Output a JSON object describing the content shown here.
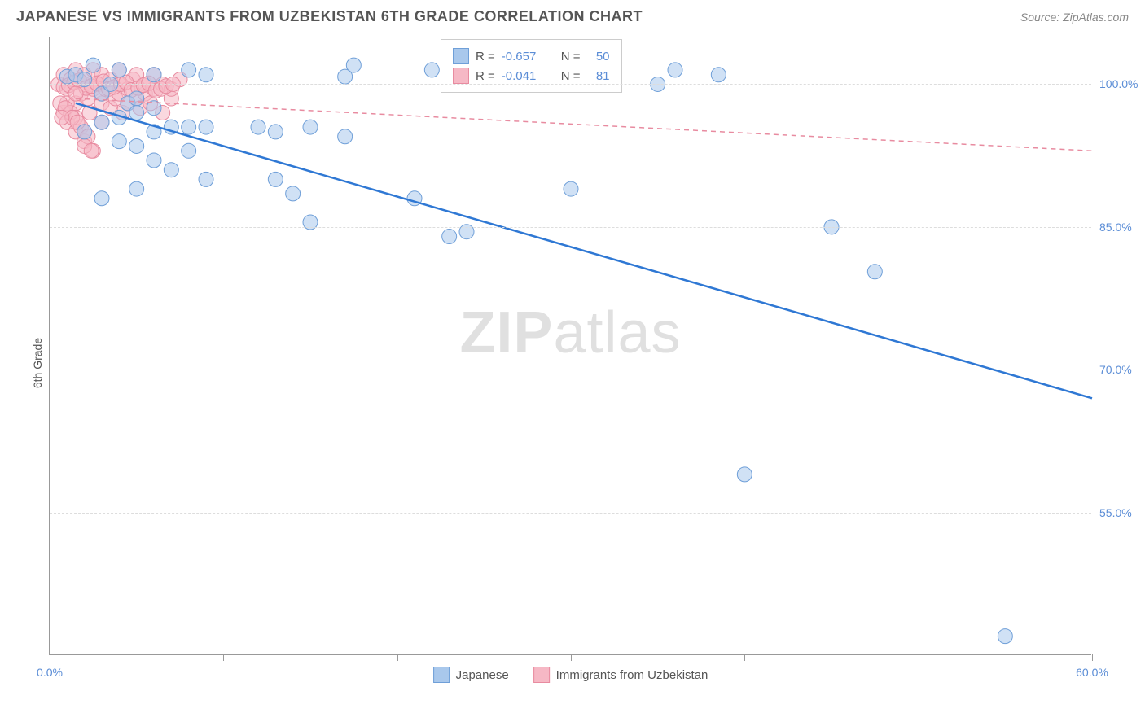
{
  "title": "JAPANESE VS IMMIGRANTS FROM UZBEKISTAN 6TH GRADE CORRELATION CHART",
  "source": "Source: ZipAtlas.com",
  "y_axis_label": "6th Grade",
  "watermark_bold": "ZIP",
  "watermark_rest": "atlas",
  "chart": {
    "type": "scatter",
    "xlim": [
      0,
      60
    ],
    "ylim": [
      40,
      105
    ],
    "x_ticks": [
      0,
      10,
      20,
      30,
      40,
      50,
      60
    ],
    "x_tick_labels": [
      "0.0%",
      "",
      "",
      "",
      "",
      "",
      "60.0%"
    ],
    "y_ticks": [
      55,
      70,
      85,
      100
    ],
    "y_tick_labels": [
      "55.0%",
      "70.0%",
      "85.0%",
      "100.0%"
    ],
    "grid_color": "#dddddd",
    "axis_color": "#999999",
    "background_color": "#ffffff",
    "marker_radius": 9,
    "marker_opacity": 0.55,
    "line_width": 2.5,
    "series": [
      {
        "name": "Japanese",
        "fill_color": "#a9c8ec",
        "stroke_color": "#6f9fd8",
        "line_color": "#2f78d4",
        "R": "-0.657",
        "N": "50",
        "trend": {
          "x1": 1.5,
          "y1": 98,
          "x2": 60,
          "y2": 67
        },
        "points": [
          [
            1,
            100.8
          ],
          [
            1.5,
            101
          ],
          [
            2,
            100.5
          ],
          [
            2.5,
            102
          ],
          [
            3,
            99
          ],
          [
            3.5,
            100
          ],
          [
            4,
            101.5
          ],
          [
            4.5,
            98
          ],
          [
            5,
            98.5
          ],
          [
            2,
            95
          ],
          [
            3,
            96
          ],
          [
            4,
            96.5
          ],
          [
            5,
            97
          ],
          [
            6,
            101
          ],
          [
            8,
            101.5
          ],
          [
            9,
            101
          ],
          [
            17,
            100.8
          ],
          [
            17.5,
            102
          ],
          [
            22,
            101.5
          ],
          [
            35,
            100
          ],
          [
            36,
            101.5
          ],
          [
            4,
            94
          ],
          [
            5,
            93.5
          ],
          [
            6,
            95
          ],
          [
            7,
            95.5
          ],
          [
            6,
            97.5
          ],
          [
            8,
            95.5
          ],
          [
            9,
            95.5
          ],
          [
            12,
            95.5
          ],
          [
            13,
            95
          ],
          [
            15,
            95.5
          ],
          [
            17,
            94.5
          ],
          [
            6,
            92
          ],
          [
            7,
            91
          ],
          [
            3,
            88
          ],
          [
            5,
            89
          ],
          [
            9,
            90
          ],
          [
            13,
            90
          ],
          [
            14,
            88.5
          ],
          [
            15,
            85.5
          ],
          [
            21,
            88
          ],
          [
            30,
            89
          ],
          [
            24,
            84.5
          ],
          [
            23,
            84
          ],
          [
            45,
            85
          ],
          [
            38.5,
            101
          ],
          [
            47.5,
            80.3
          ],
          [
            40,
            59
          ],
          [
            55,
            42
          ],
          [
            8,
            93
          ]
        ]
      },
      {
        "name": "Immigrants from Uzbekistan",
        "fill_color": "#f6b8c5",
        "stroke_color": "#e88ba0",
        "line_color": "#e88ba0",
        "R": "-0.041",
        "N": "81",
        "trend": {
          "x1": 1.5,
          "y1": 98.5,
          "x2": 60,
          "y2": 93
        },
        "points": [
          [
            0.5,
            100
          ],
          [
            0.8,
            101
          ],
          [
            1,
            99.5
          ],
          [
            1.2,
            100.5
          ],
          [
            1.5,
            98
          ],
          [
            1.5,
            101.5
          ],
          [
            1.8,
            99
          ],
          [
            2,
            100
          ],
          [
            2,
            101
          ],
          [
            2.2,
            98.5
          ],
          [
            2.5,
            99.5
          ],
          [
            2.5,
            101.5
          ],
          [
            2.8,
            100
          ],
          [
            3,
            98
          ],
          [
            3,
            99
          ],
          [
            3,
            101
          ],
          [
            3.2,
            99.5
          ],
          [
            3.5,
            100.5
          ],
          [
            3.5,
            97.5
          ],
          [
            3.8,
            98.5
          ],
          [
            4,
            99
          ],
          [
            4,
            100
          ],
          [
            4,
            101.5
          ],
          [
            4.2,
            97
          ],
          [
            4.5,
            98
          ],
          [
            4.5,
            99.5
          ],
          [
            4.8,
            100.5
          ],
          [
            5,
            98.5
          ],
          [
            5,
            101
          ],
          [
            5.2,
            97.5
          ],
          [
            5.5,
            99
          ],
          [
            5.5,
            100
          ],
          [
            5.8,
            98
          ],
          [
            6,
            99.5
          ],
          [
            6,
            101
          ],
          [
            6.5,
            97
          ],
          [
            6.5,
            100
          ],
          [
            7,
            98.5
          ],
          [
            7,
            99.5
          ],
          [
            7.5,
            100.5
          ],
          [
            0.8,
            97
          ],
          [
            1,
            96
          ],
          [
            1.5,
            95
          ],
          [
            2,
            94
          ],
          [
            2.5,
            93
          ],
          [
            1,
            98
          ],
          [
            1.2,
            97
          ],
          [
            1.5,
            96.5
          ],
          [
            1.8,
            95.5
          ],
          [
            2,
            95
          ],
          [
            2.2,
            94.5
          ],
          [
            0.8,
            99.7
          ],
          [
            1.1,
            99.9
          ],
          [
            1.4,
            100.2
          ],
          [
            1.7,
            100.4
          ],
          [
            2.1,
            99.6
          ],
          [
            2.4,
            99.8
          ],
          [
            2.7,
            100.1
          ],
          [
            3.1,
            100.3
          ],
          [
            3.4,
            99.5
          ],
          [
            3.7,
            99.7
          ],
          [
            4.1,
            100
          ],
          [
            4.4,
            100.2
          ],
          [
            4.7,
            99.4
          ],
          [
            5.1,
            99.6
          ],
          [
            5.4,
            99.9
          ],
          [
            5.7,
            100.1
          ],
          [
            6.1,
            99.3
          ],
          [
            6.4,
            99.5
          ],
          [
            6.7,
            99.8
          ],
          [
            7.1,
            100
          ],
          [
            0.6,
            98
          ],
          [
            0.9,
            97.5
          ],
          [
            1.3,
            96.5
          ],
          [
            1.6,
            96
          ],
          [
            2,
            93.5
          ],
          [
            2.4,
            93
          ],
          [
            0.7,
            96.5
          ],
          [
            1.5,
            99
          ],
          [
            2.3,
            97
          ],
          [
            3.0,
            96
          ]
        ]
      }
    ]
  },
  "stats_legend": {
    "rows": [
      {
        "swatch_fill": "#a9c8ec",
        "swatch_stroke": "#6f9fd8",
        "r_label": "R =",
        "r_val": "-0.657",
        "n_label": "N =",
        "n_val": "50"
      },
      {
        "swatch_fill": "#f6b8c5",
        "swatch_stroke": "#e88ba0",
        "r_label": "R =",
        "r_val": "-0.041",
        "n_label": "N =",
        "n_val": "81"
      }
    ]
  },
  "bottom_legend": [
    {
      "fill": "#a9c8ec",
      "stroke": "#6f9fd8",
      "label": "Japanese"
    },
    {
      "fill": "#f6b8c5",
      "stroke": "#e88ba0",
      "label": "Immigrants from Uzbekistan"
    }
  ]
}
